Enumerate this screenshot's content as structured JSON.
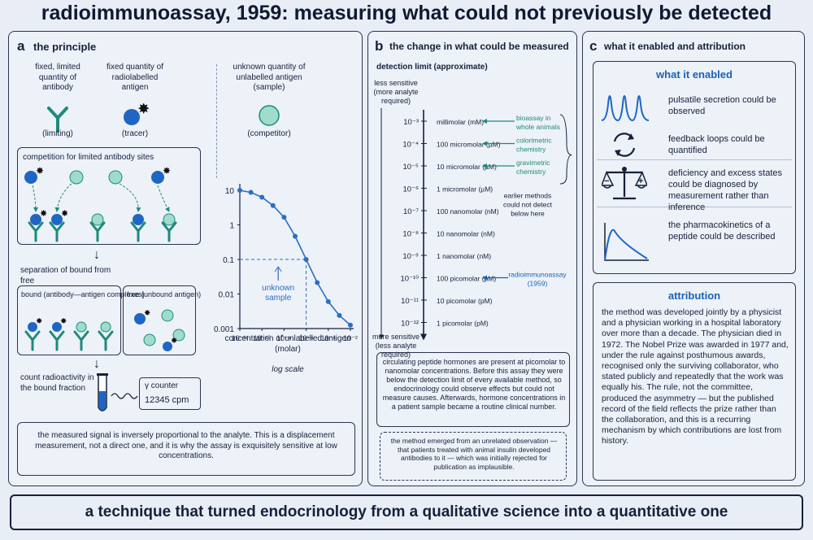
{
  "title": "radioimmunoassay, 1959: measuring what could not previously be detected",
  "panel_a": {
    "letter": "a",
    "heading": "the principle",
    "antibody": {
      "label": "fixed, limited quantity of antibody",
      "role": "(limiting)"
    },
    "antigen": {
      "label": "fixed quantity of radiolabelled antigen",
      "role": "(tracer)"
    },
    "sample": {
      "label": "unknown quantity of unlabelled antigen (sample)",
      "role": "(competitor)"
    },
    "competition_title": "competition for limited antibody sites",
    "separation": "separation of bound from free",
    "bound_title": "bound",
    "bound_sub": "(antibody—antigen complexes)",
    "free_title": "free",
    "free_sub": "(unbound antigen)",
    "count_label": "count radioactivity in the bound fraction",
    "counter_title": "γ counter",
    "counter_value": "12345 cpm",
    "note": "the measured signal is inversely proportional to the analyte. This is a displacement measurement, not a direct one, and it is why the assay is exquisitely sensitive at low concentrations."
  },
  "chart_data": {
    "type": "line",
    "xlabel": "concentration of unlabelled antigen (molar)",
    "ylabel": "",
    "x_scale": "log",
    "y_scale": "log",
    "x_tick_labels": [
      "10⁻¹²",
      "10⁻¹⁰",
      "10⁻⁸",
      "10⁻⁶",
      "10⁻⁴",
      "10⁻²"
    ],
    "y_tick_labels": [
      "10",
      "1",
      "0.1",
      "0.01",
      "0.001"
    ],
    "xlim_exp": [
      -12,
      -2
    ],
    "ylim_exp": [
      -3,
      1
    ],
    "x_exp": [
      -12,
      -11,
      -10,
      -9,
      -8,
      -7,
      -6,
      -5,
      -4,
      -3,
      -2
    ],
    "y_exp": [
      1.0,
      0.94,
      0.8,
      0.56,
      0.22,
      -0.33,
      -1.0,
      -1.67,
      -2.22,
      -2.62,
      -2.9
    ],
    "annotation": "unknown sample",
    "annotation_point": {
      "x_exp": -6,
      "y_exp": -1
    },
    "scale_note": "log scale",
    "grid": false,
    "color": "#2a6fc4"
  },
  "panel_b": {
    "letter": "b",
    "heading": "the change in what could be measured",
    "axis_title": "detection limit (approximate)",
    "top_label": "less sensitive (more analyte required)",
    "bottom_label": "more sensitive (less analyte required)",
    "levels": [
      {
        "exp": "10⁻³",
        "unit": "millimolar (mM)"
      },
      {
        "exp": "10⁻⁴",
        "unit": "100 micromolar (µM)"
      },
      {
        "exp": "10⁻⁵",
        "unit": "10 micromolar (µM)"
      },
      {
        "exp": "10⁻⁶",
        "unit": "1 micromolar (µM)"
      },
      {
        "exp": "10⁻⁷",
        "unit": "100 nanomolar (nM)"
      },
      {
        "exp": "10⁻⁸",
        "unit": "10 nanomolar (nM)"
      },
      {
        "exp": "10⁻⁹",
        "unit": "1 nanomolar (nM)"
      },
      {
        "exp": "10⁻¹⁰",
        "unit": "100 picomolar (pM)"
      },
      {
        "exp": "10⁻¹¹",
        "unit": "10 picomolar (pM)"
      },
      {
        "exp": "10⁻¹²",
        "unit": "1 picomolar (pM)"
      }
    ],
    "methods": [
      {
        "name": "bioassay in whole animals",
        "level_index": 0
      },
      {
        "name": "colorimetric chemistry",
        "level_index": 1
      },
      {
        "name": "gravimetric chemistry",
        "level_index": 2
      }
    ],
    "earlier_note": "earlier methods could not detect below here",
    "ria_label": "radioimmunoassay (1959)",
    "ria_level_index": 7,
    "box1": "circulating peptide hormones are present at picomolar to nanomolar concentrations. Before this assay they were below the detection limit of every available method, so endocrinology could observe effects but could not measure causes. Afterwards, hormone concentrations in a patient sample became a routine clinical number.",
    "box2": "the method emerged from an unrelated observation — that patients treated with animal insulin developed antibodies to it — which was initially rejected for publication as implausible."
  },
  "panel_c": {
    "letter": "c",
    "heading": "what it enabled and attribution",
    "enabled_title": "what it enabled",
    "items": [
      {
        "icon": "pulse-peaks-icon",
        "text": "pulsatile secretion could be observed"
      },
      {
        "icon": "feedback-loop-icon",
        "text": "feedback loops could be quantified"
      },
      {
        "icon": "balance-scale-icon",
        "text": "deficiency and excess states could be diagnosed by measurement rather than inference"
      },
      {
        "icon": "pharmacokinetic-curve-icon",
        "text": "the pharmacokinetics of a peptide could be described"
      }
    ],
    "attribution_title": "attribution",
    "attribution_text": "the method was developed jointly by a physicist and a physician working in a hospital laboratory over more than a decade. The physician died in 1972. The Nobel Prize was awarded in 1977 and, under the rule against posthumous awards, recognised only the surviving collaborator, who stated publicly and repeatedly that the work was equally his. The rule, not the committee, produced the asymmetry — but the published record of the field reflects the prize rather than the collaboration, and this is a recurring mechanism by which contributions are lost from history."
  },
  "footer": "a technique that turned endocrinology from a qualitative science into a quantitative one",
  "colors": {
    "dark_blue": "#1f66c4",
    "teal_light": "#9fdccb",
    "teal_dark": "#1e8a7a",
    "antibody": "#1e8a7a",
    "ink": "#15213b"
  }
}
